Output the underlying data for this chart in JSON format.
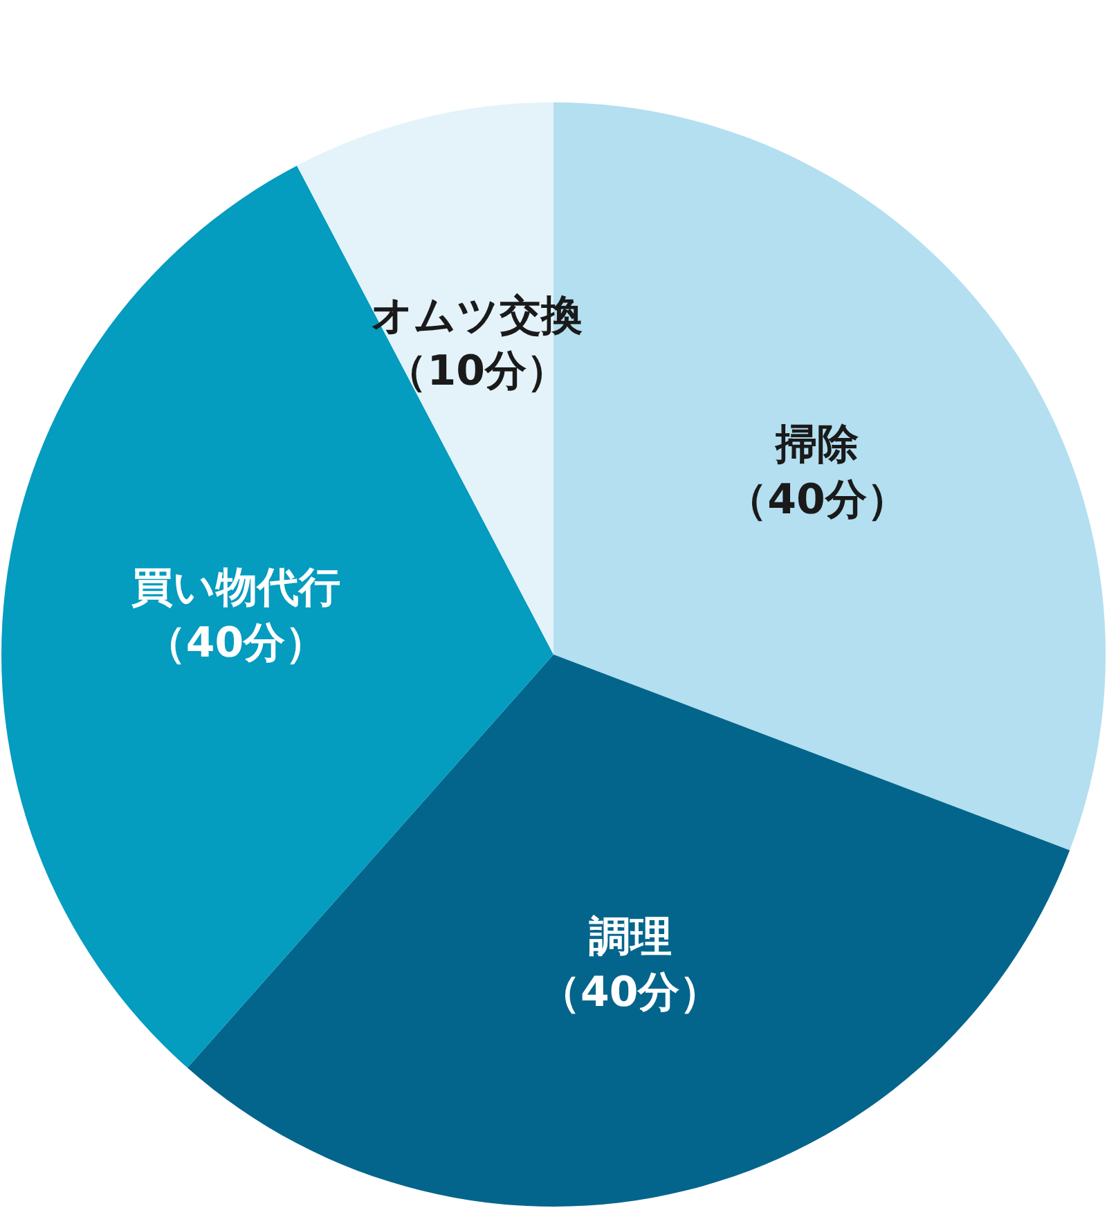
{
  "chart_data": {
    "type": "pie",
    "categories": [
      "掃除",
      "調理",
      "買い物代行",
      "オムツ交換"
    ],
    "values": [
      40,
      40,
      40,
      10
    ],
    "colors": [
      "#b3dff0",
      "#03658c",
      "#049cbf",
      "#e3f3f9"
    ],
    "value_labels": [
      "（40分）",
      "（40分）",
      "（40分）",
      "（10分）"
    ]
  }
}
